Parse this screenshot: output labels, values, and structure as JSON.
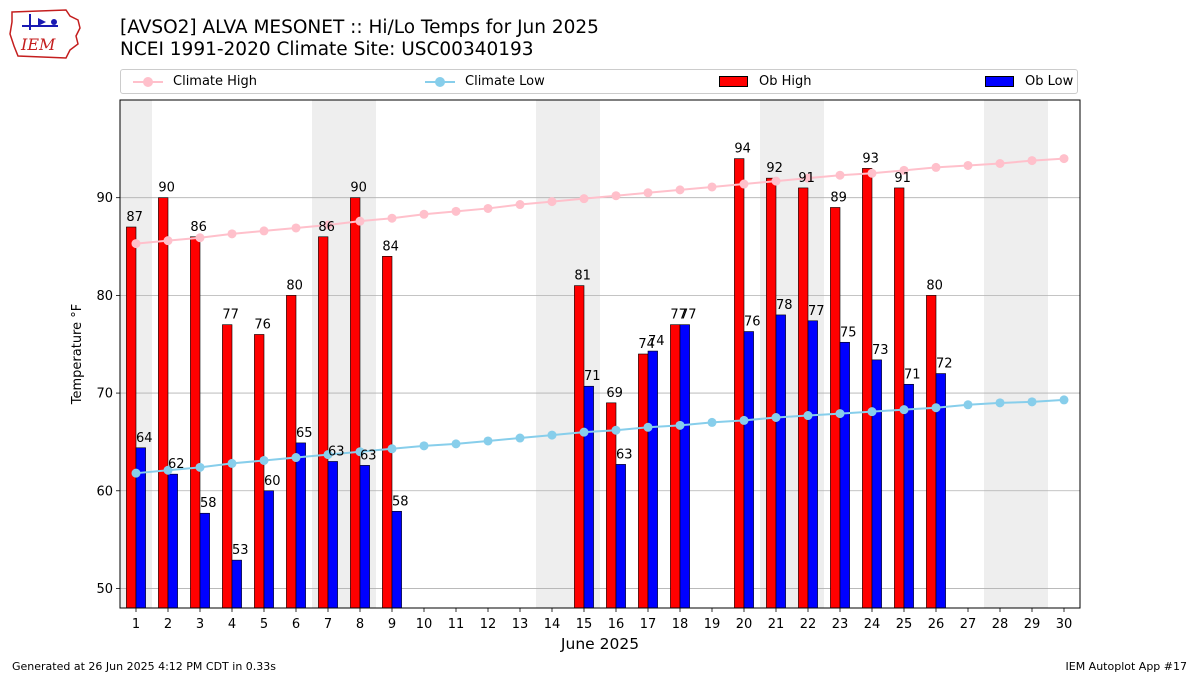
{
  "logo": {
    "text": "IEM"
  },
  "title_line1": "[AVSO2] ALVA MESONET :: Hi/Lo Temps for Jun 2025",
  "title_line2": "NCEI 1991-2020 Climate Site: USC00340193",
  "legend": [
    {
      "label": "Climate High",
      "kind": "line",
      "color": "#ffc0cb"
    },
    {
      "label": "Climate Low",
      "kind": "line",
      "color": "#87ceeb"
    },
    {
      "label": "Ob High",
      "kind": "bar",
      "color": "#ff0000"
    },
    {
      "label": "Ob Low",
      "kind": "bar",
      "color": "#0000ff"
    }
  ],
  "footer_left": "Generated at 26 Jun 2025 4:12 PM CDT in 0.33s",
  "footer_right": "IEM Autoplot App #17",
  "chart_data": {
    "type": "bar",
    "xlabel": "June 2025",
    "ylabel": "Temperature °F",
    "xlim": [
      0.5,
      30.5
    ],
    "ylim": [
      48,
      100
    ],
    "yticks": [
      50,
      60,
      70,
      80,
      90
    ],
    "grid": "horizontal",
    "legend_position": "top",
    "days": [
      1,
      2,
      3,
      4,
      5,
      6,
      7,
      8,
      9,
      10,
      11,
      12,
      13,
      14,
      15,
      16,
      17,
      18,
      19,
      20,
      21,
      22,
      23,
      24,
      25,
      26,
      27,
      28,
      29,
      30
    ],
    "weekend_shaded_days": [
      1,
      7,
      8,
      14,
      15,
      21,
      22,
      28,
      29
    ],
    "series": [
      {
        "name": "Ob High",
        "kind": "bar",
        "color": "#ff0000",
        "values": [
          87,
          90,
          86,
          77,
          76,
          80,
          86,
          90,
          84,
          null,
          null,
          null,
          null,
          null,
          81,
          69,
          74,
          77,
          null,
          94,
          92,
          91,
          89,
          93,
          91,
          80,
          null,
          null,
          null,
          null
        ],
        "labels": [
          "87",
          "90",
          "86",
          "77",
          "76",
          "80",
          "86",
          "90",
          "84",
          null,
          null,
          null,
          null,
          null,
          "81",
          "69",
          "74",
          "77",
          null,
          "94",
          "92",
          "91",
          "89",
          "93",
          "91",
          "80",
          null,
          null,
          null,
          null
        ]
      },
      {
        "name": "Ob Low",
        "kind": "bar",
        "color": "#0000ff",
        "values": [
          64.4,
          61.7,
          57.7,
          52.9,
          60.0,
          64.9,
          63.0,
          62.6,
          57.9,
          null,
          null,
          null,
          null,
          null,
          70.7,
          62.7,
          74.3,
          77.0,
          null,
          76.3,
          78.0,
          77.4,
          75.2,
          73.4,
          70.9,
          72.0,
          null,
          null,
          null,
          null
        ],
        "labels": [
          "64",
          "62",
          "58",
          "53",
          "60",
          "65",
          "63",
          "63",
          "58",
          null,
          null,
          null,
          null,
          null,
          "71",
          "63",
          "74",
          "77",
          null,
          "76",
          "78",
          "77",
          "75",
          "73",
          "71",
          "72",
          null,
          null,
          null,
          null
        ]
      },
      {
        "name": "Climate High",
        "kind": "line",
        "color": "#ffc0cb",
        "values": [
          85.3,
          85.6,
          85.9,
          86.3,
          86.6,
          86.9,
          87.2,
          87.6,
          87.9,
          88.3,
          88.6,
          88.9,
          89.3,
          89.6,
          89.9,
          90.2,
          90.5,
          90.8,
          91.1,
          91.4,
          91.7,
          92.0,
          92.3,
          92.5,
          92.8,
          93.1,
          93.3,
          93.5,
          93.8,
          94.0
        ]
      },
      {
        "name": "Climate Low",
        "kind": "line",
        "color": "#87ceeb",
        "values": [
          61.8,
          62.1,
          62.4,
          62.8,
          63.1,
          63.4,
          63.7,
          64.0,
          64.3,
          64.6,
          64.8,
          65.1,
          65.4,
          65.7,
          66.0,
          66.2,
          66.5,
          66.7,
          67.0,
          67.2,
          67.5,
          67.7,
          67.9,
          68.1,
          68.3,
          68.5,
          68.8,
          69.0,
          69.1,
          69.3
        ]
      }
    ]
  }
}
